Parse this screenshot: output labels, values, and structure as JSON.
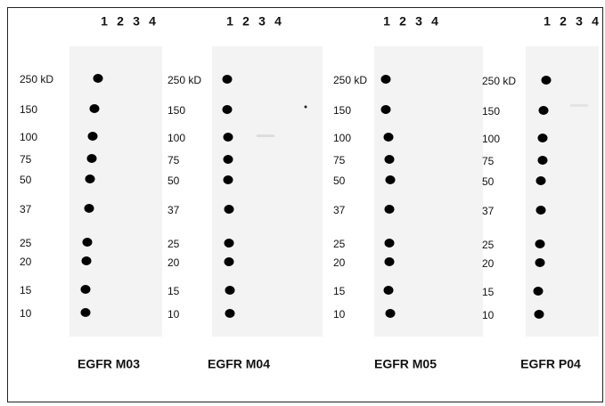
{
  "panels": [
    {
      "title": "EGFR M03",
      "lanes": [
        "1",
        "2",
        "3",
        "4"
      ],
      "markers": [
        "250 kD",
        "150",
        "100",
        "75",
        "50",
        "37",
        "25",
        "20",
        "15",
        "10"
      ]
    },
    {
      "title": "EGFR M04",
      "lanes": [
        "1",
        "2",
        "3",
        "4"
      ],
      "markers": [
        "250 kD",
        "150",
        "100",
        "75",
        "50",
        "37",
        "25",
        "20",
        "15",
        "10"
      ]
    },
    {
      "title": "EGFR M05",
      "lanes": [
        "1",
        "2",
        "3",
        "4"
      ],
      "markers": [
        "250 kD",
        "150",
        "100",
        "75",
        "50",
        "37",
        "25",
        "20",
        "15",
        "10"
      ]
    },
    {
      "title": "EGFR P04",
      "lanes": [
        "1",
        "2",
        "3",
        "4"
      ],
      "markers": [
        "250 kD",
        "150",
        "100",
        "75",
        "50",
        "37",
        "25",
        "20",
        "15",
        "10"
      ]
    }
  ]
}
